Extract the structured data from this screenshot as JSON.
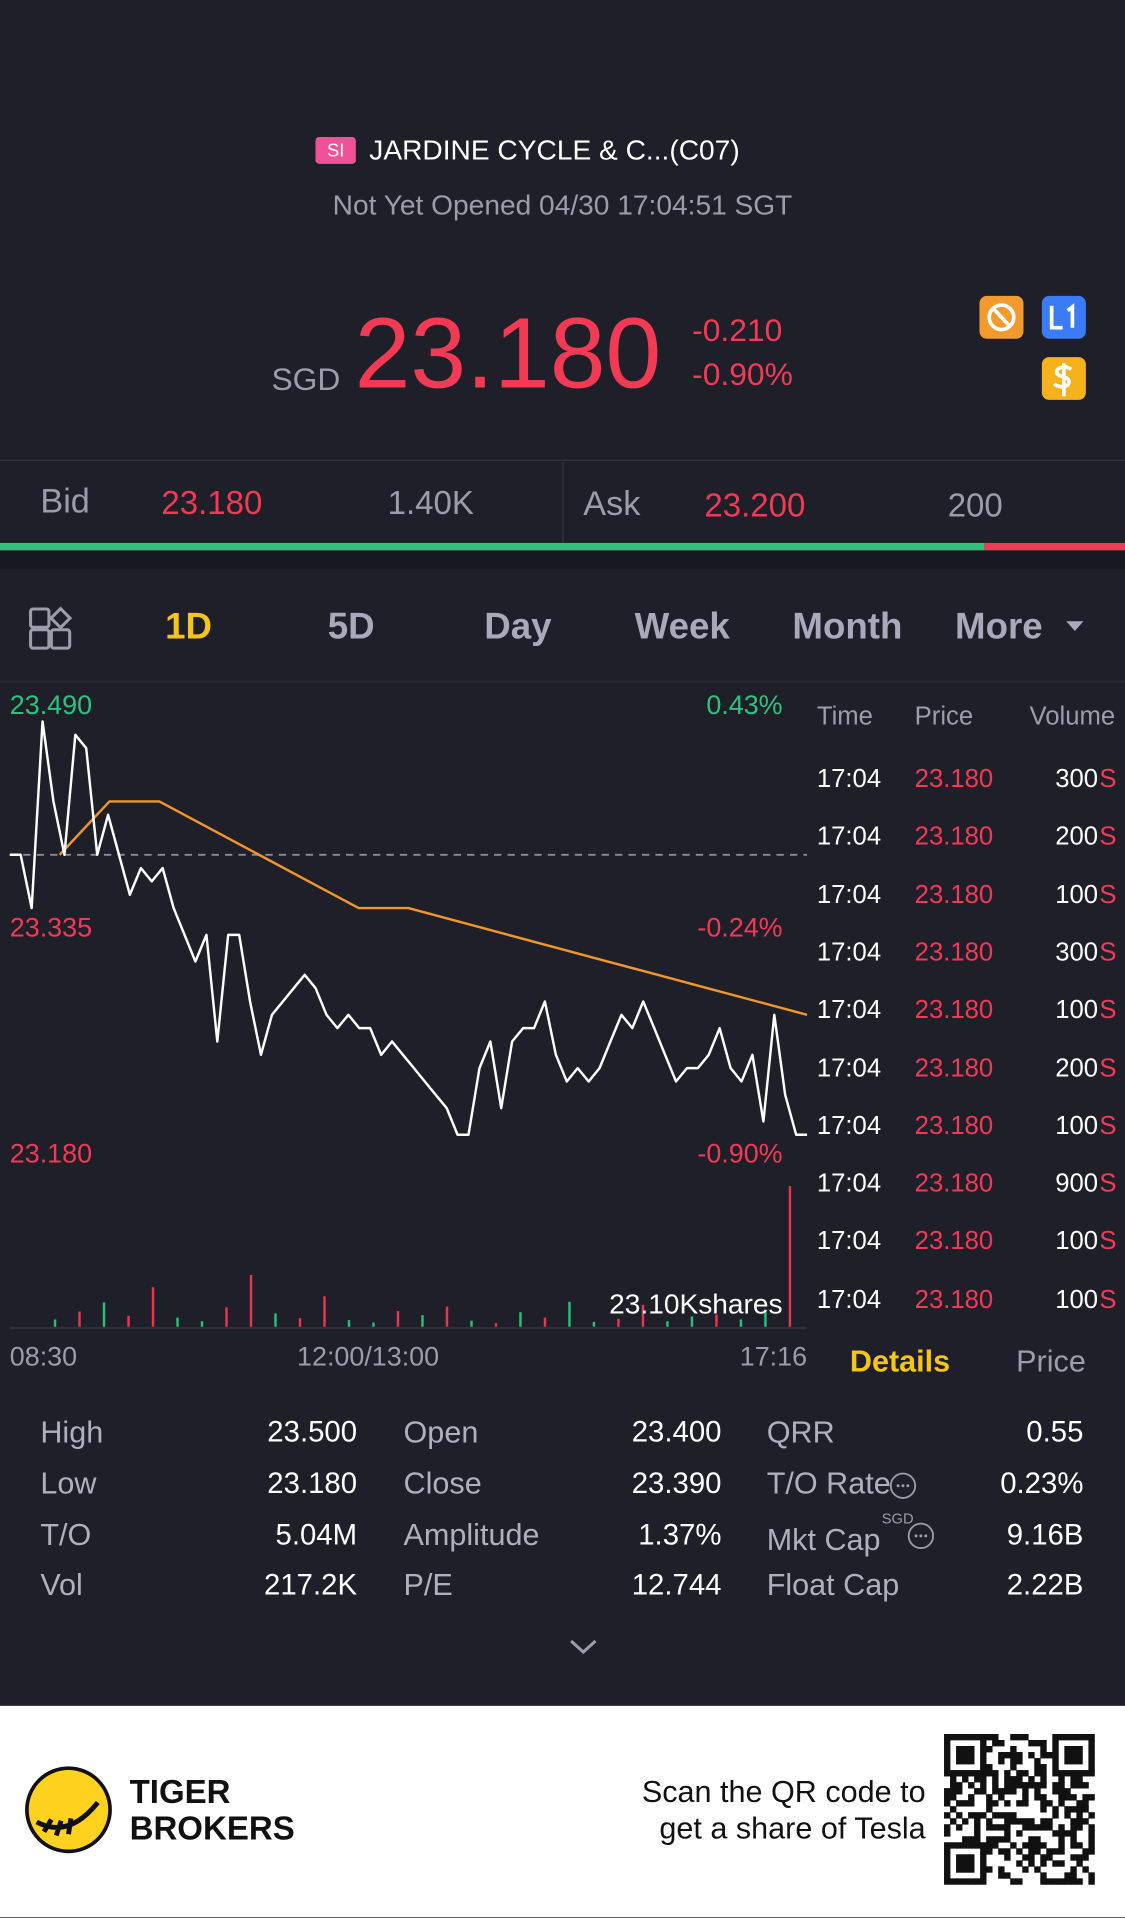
{
  "header": {
    "market": "SI",
    "name": "JARDINE CYCLE & C...(C07)",
    "status": "Not Yet Opened 04/30 17:04:51 SGT"
  },
  "quote": {
    "currency": "SGD",
    "price": "23.180",
    "change": "-0.210",
    "change_pct": "-0.90%"
  },
  "order_book": {
    "bid_label": "Bid",
    "bid_price": "23.180",
    "bid_size": "1.40K",
    "ask_label": "Ask",
    "ask_price": "23.200",
    "ask_size": "200",
    "depth": {
      "bid": 1400,
      "ask": 200
    }
  },
  "tabs": {
    "items": [
      "1D",
      "5D",
      "Day",
      "Week",
      "Month",
      "More"
    ],
    "active": 0
  },
  "chart": {
    "type": "line",
    "ylim": [
      23.18,
      23.49
    ],
    "prev_close": 23.39,
    "y_left_labels": [
      {
        "value": 23.49,
        "label": "23.490"
      },
      {
        "value": 23.335,
        "label": "23.335"
      },
      {
        "value": 23.18,
        "label": "23.180"
      }
    ],
    "y_right_labels": [
      "0.43%",
      "-0.24%",
      "-0.90%"
    ],
    "price": {
      "color": "#ffffff",
      "values": [
        23.39,
        23.39,
        23.35,
        23.49,
        23.43,
        23.39,
        23.48,
        23.47,
        23.39,
        23.42,
        23.39,
        23.36,
        23.38,
        23.37,
        23.38,
        23.35,
        23.33,
        23.31,
        23.33,
        23.25,
        23.33,
        23.33,
        23.28,
        23.24,
        23.27,
        23.28,
        23.29,
        23.3,
        23.29,
        23.27,
        23.26,
        23.27,
        23.26,
        23.26,
        23.24,
        23.25,
        23.24,
        23.23,
        23.22,
        23.21,
        23.2,
        23.18,
        23.18,
        23.23,
        23.25,
        23.2,
        23.25,
        23.26,
        23.26,
        23.28,
        23.24,
        23.22,
        23.23,
        23.22,
        23.23,
        23.25,
        23.27,
        23.26,
        23.28,
        23.26,
        23.24,
        23.22,
        23.23,
        23.23,
        23.24,
        23.26,
        23.23,
        23.22,
        23.24,
        23.19,
        23.27,
        23.21,
        23.18,
        23.18
      ]
    },
    "avg": {
      "color": "#f0962a",
      "values": [
        null,
        23.39,
        23.43,
        23.43,
        23.41,
        23.39,
        23.37,
        23.35,
        23.35,
        23.34,
        23.33,
        23.32,
        23.31,
        23.3,
        23.29,
        23.28,
        23.27
      ]
    },
    "volume": {
      "max": 23100,
      "max_label": "23.10Kshares",
      "values": [
        1200,
        2500,
        4000,
        1800,
        6500,
        1500,
        900,
        3200,
        8500,
        2200,
        1400,
        5000,
        1100,
        700,
        2600,
        1900,
        3300,
        1000,
        600,
        2400,
        1500,
        4100,
        800,
        1300,
        3600,
        900,
        1700,
        2000,
        1200,
        2800,
        23100
      ],
      "colors": [
        "#27c07a",
        "#e8364f",
        "#27c07a",
        "#e8364f",
        "#e8364f",
        "#27c07a",
        "#27c07a",
        "#e8364f",
        "#e8364f",
        "#27c07a",
        "#e8364f",
        "#e8364f",
        "#27c07a",
        "#27c07a",
        "#e8364f",
        "#27c07a",
        "#e8364f",
        "#27c07a",
        "#e8364f",
        "#27c07a",
        "#e8364f",
        "#27c07a",
        "#27c07a",
        "#e8364f",
        "#e8364f",
        "#27c07a",
        "#27c07a",
        "#e8364f",
        "#27c07a",
        "#27c07a",
        "#e8364f"
      ]
    },
    "x_labels": [
      "08:30",
      "12:00/13:00",
      "17:16"
    ]
  },
  "trades": {
    "columns": [
      "Time",
      "Price",
      "Volume"
    ],
    "rows": [
      [
        "17:04",
        "23.180",
        "300",
        "S"
      ],
      [
        "17:04",
        "23.180",
        "200",
        "S"
      ],
      [
        "17:04",
        "23.180",
        "100",
        "S"
      ],
      [
        "17:04",
        "23.180",
        "300",
        "S"
      ],
      [
        "17:04",
        "23.180",
        "100",
        "S"
      ],
      [
        "17:04",
        "23.180",
        "200",
        "S"
      ],
      [
        "17:04",
        "23.180",
        "100",
        "S"
      ],
      [
        "17:04",
        "23.180",
        "900",
        "S"
      ],
      [
        "17:04",
        "23.180",
        "100",
        "S"
      ],
      [
        "17:04",
        "23.180",
        "100",
        "S"
      ]
    ]
  },
  "detail_tabs": {
    "items": [
      "Details",
      "Price"
    ],
    "active": 0
  },
  "stats": {
    "columns": [
      [
        {
          "label": "High",
          "value": "23.500"
        },
        {
          "label": "Low",
          "value": "23.180"
        },
        {
          "label": "T/O",
          "value": "5.04M"
        },
        {
          "label": "Vol",
          "value": "217.2K"
        }
      ],
      [
        {
          "label": "Open",
          "value": "23.400"
        },
        {
          "label": "Close",
          "value": "23.390"
        },
        {
          "label": "Amplitude",
          "value": "1.37%"
        },
        {
          "label": "P/E",
          "value": "12.744"
        }
      ],
      [
        {
          "label": "QRR",
          "value": "0.55"
        },
        {
          "label": "T/O Rate",
          "value": "0.23%",
          "info": true
        },
        {
          "label": "Mkt Cap",
          "sup": "SGD",
          "value": "9.16B",
          "info": true
        },
        {
          "label": "Float Cap",
          "value": "2.22B"
        }
      ]
    ]
  },
  "footer": {
    "brand": [
      "TIGER",
      "BROKERS"
    ],
    "promo": [
      "Scan the QR code to",
      "get a share of Tesla"
    ]
  }
}
